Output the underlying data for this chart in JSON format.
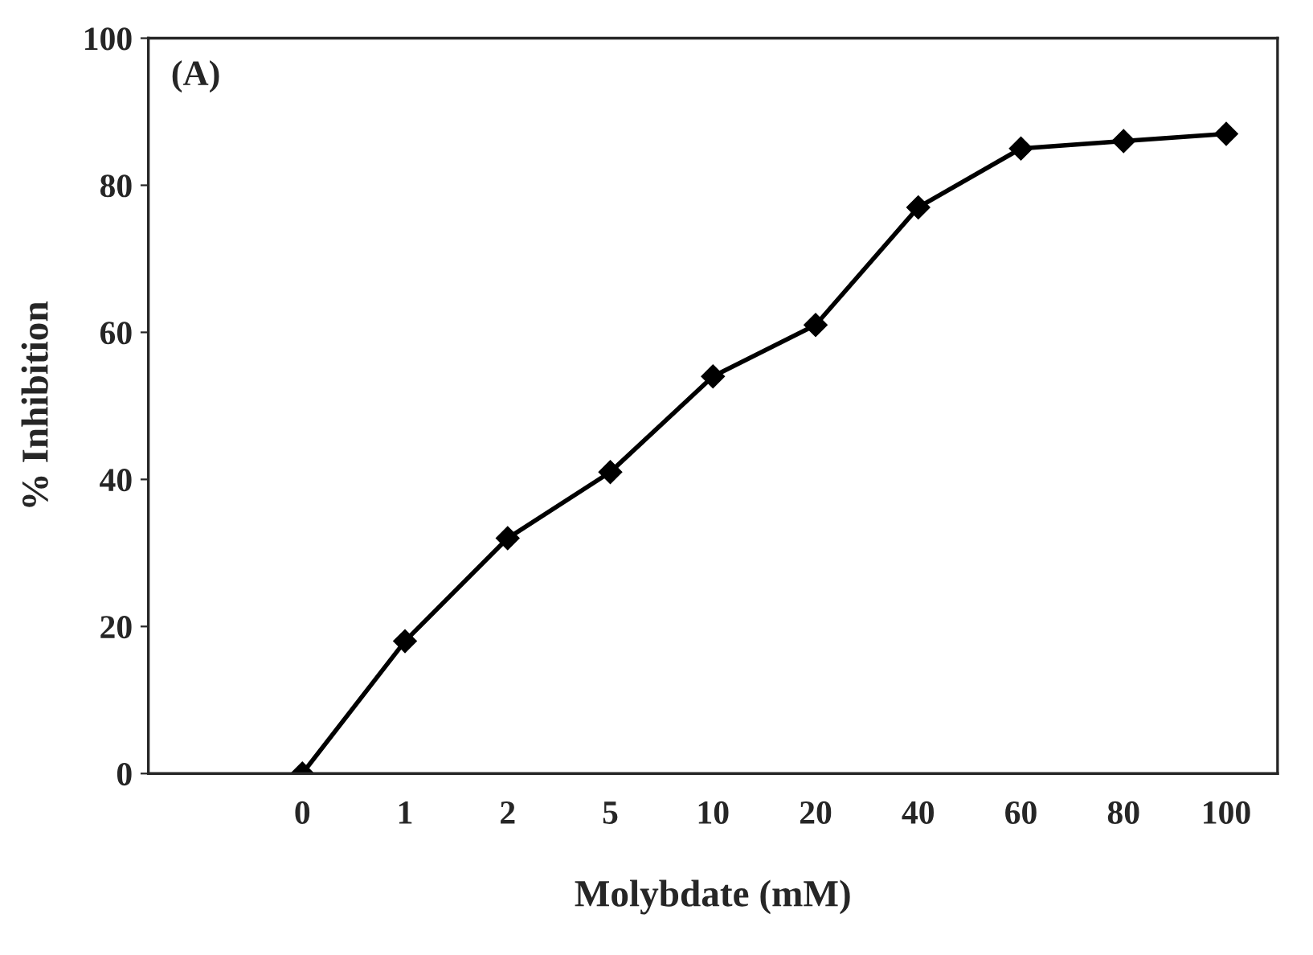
{
  "chart_data": {
    "type": "line",
    "xlabel": "Molybdate (mM)",
    "ylabel": "% Inhibition",
    "categories": [
      "0",
      "1",
      "2",
      "5",
      "10",
      "20",
      "40",
      "60",
      "80",
      "100"
    ],
    "series": [
      {
        "color": "#000000",
        "values": [
          0,
          18,
          32,
          41,
          54,
          61,
          77,
          85,
          86,
          87
        ]
      }
    ],
    "ylim": [
      0,
      100
    ],
    "yticks": [
      0,
      20,
      40,
      60,
      80,
      100
    ],
    "grid": false,
    "marker": "diamond",
    "line_style": "solid",
    "annotations": [
      "(A)"
    ]
  }
}
